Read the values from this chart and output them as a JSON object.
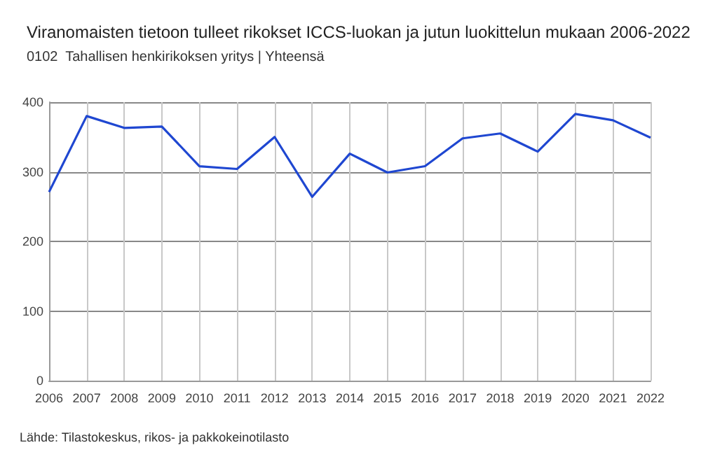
{
  "chart_data": {
    "type": "line",
    "title": "Viranomaisten tietoon tulleet rikokset ICCS-luokan ja jutun luokittelun mukaan 2006-2022",
    "subtitle": "0102  Tahallisen henkirikoksen yritys | Yhteensä",
    "x": [
      2006,
      2007,
      2008,
      2009,
      2010,
      2011,
      2012,
      2013,
      2014,
      2015,
      2016,
      2017,
      2018,
      2019,
      2020,
      2021,
      2022
    ],
    "series": [
      {
        "color": "#1f47d1",
        "values": [
          271,
          380,
          363,
          365,
          308,
          304,
          350,
          264,
          326,
          299,
          308,
          348,
          355,
          329,
          383,
          374,
          349
        ]
      }
    ],
    "xlim": [
      2006,
      2022
    ],
    "xticks": [
      2006,
      2007,
      2008,
      2009,
      2010,
      2011,
      2012,
      2013,
      2014,
      2015,
      2016,
      2017,
      2018,
      2019,
      2020,
      2021,
      2022
    ],
    "ylim": [
      0,
      400
    ],
    "yticks": [
      0,
      100,
      200,
      300,
      400
    ],
    "grid": true,
    "marker": "none",
    "line_style": "solid",
    "annotations": [
      "Lähde: Tilastokeskus, rikos- ja pakkokeinotilasto"
    ]
  }
}
